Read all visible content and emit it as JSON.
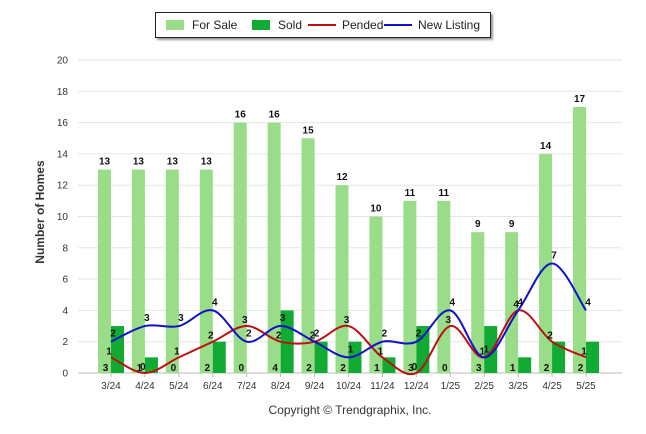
{
  "chart_data": {
    "type": "bar",
    "categories": [
      "3/24",
      "4/24",
      "5/24",
      "6/24",
      "7/24",
      "8/24",
      "9/24",
      "10/24",
      "11/24",
      "12/24",
      "1/25",
      "2/25",
      "3/25",
      "4/25",
      "5/25"
    ],
    "series": [
      {
        "name": "For Sale",
        "kind": "bar",
        "color": "#99dd88",
        "values": [
          13,
          13,
          13,
          13,
          16,
          16,
          15,
          12,
          10,
          11,
          11,
          9,
          9,
          14,
          17
        ]
      },
      {
        "name": "Sold",
        "kind": "bar",
        "color": "#11aa33",
        "values": [
          3,
          1,
          0,
          2,
          0,
          4,
          2,
          2,
          1,
          3,
          0,
          3,
          1,
          2,
          2
        ]
      },
      {
        "name": "Pended",
        "kind": "line",
        "color": "#bb1111",
        "values": [
          1,
          0,
          1,
          2,
          3,
          2,
          2,
          3,
          1,
          0,
          3,
          1,
          4,
          2,
          1
        ]
      },
      {
        "name": "New Listing",
        "kind": "line",
        "color": "#1111cc",
        "values": [
          2,
          3,
          3,
          4,
          2,
          3,
          2,
          1,
          2,
          2,
          4,
          1,
          4,
          7,
          4
        ]
      }
    ],
    "ylabel": "Number of Homes",
    "ylim": [
      0,
      20
    ],
    "yticks": [
      0,
      2,
      4,
      6,
      8,
      10,
      12,
      14,
      16,
      18,
      20
    ],
    "legend_position": "top",
    "grid": true
  },
  "copyright": "Copyright © Trendgraphix, Inc."
}
